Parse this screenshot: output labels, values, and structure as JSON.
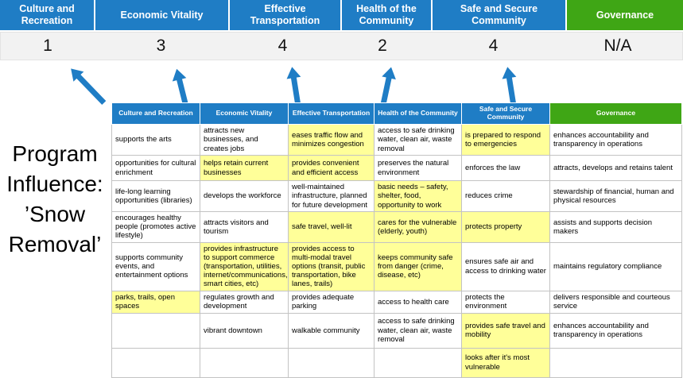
{
  "colors": {
    "header_blue": "#1f7dc5",
    "header_green": "#3fa615",
    "highlight_yellow": "#ffff99",
    "score_bar_bg": "#f2f2f2",
    "arrow_blue": "#1f7dc5"
  },
  "program_label": {
    "lines": [
      "Program",
      "Influence:",
      "’Snow",
      "Removal’"
    ]
  },
  "columns": [
    {
      "label": "Culture and Recreation",
      "score": "1",
      "color_key": "blue"
    },
    {
      "label": "Economic Vitality",
      "score": "3",
      "color_key": "blue"
    },
    {
      "label": "Effective Transportation",
      "score": "4",
      "color_key": "blue"
    },
    {
      "label": "Health of the Community",
      "score": "2",
      "color_key": "blue"
    },
    {
      "label": "Safe and Secure Community",
      "score": "4",
      "color_key": "blue"
    },
    {
      "label": "Governance",
      "score": "N/A",
      "color_key": "green"
    }
  ],
  "table": {
    "rows": [
      [
        {
          "text": "supports the arts",
          "highlight": false
        },
        {
          "text": "attracts new businesses, and creates jobs",
          "highlight": false
        },
        {
          "text": "eases traffic flow and minimizes congestion",
          "highlight": true
        },
        {
          "text": "access to safe drinking water, clean air, waste removal",
          "highlight": false
        },
        {
          "text": "is prepared to respond to emergencies",
          "highlight": true
        },
        {
          "text": "enhances accountability and transparency in operations",
          "highlight": false
        }
      ],
      [
        {
          "text": "opportunities for cultural enrichment",
          "highlight": false
        },
        {
          "text": "helps retain current businesses",
          "highlight": true
        },
        {
          "text": "provides convenient and efficient access",
          "highlight": true
        },
        {
          "text": "preserves the natural environment",
          "highlight": false
        },
        {
          "text": "enforces the law",
          "highlight": false
        },
        {
          "text": "attracts, develops and retains talent",
          "highlight": false
        }
      ],
      [
        {
          "text": "life-long learning opportunities (libraries)",
          "highlight": false
        },
        {
          "text": "develops the workforce",
          "highlight": false
        },
        {
          "text": "well-maintained infrastructure, planned for future development",
          "highlight": false
        },
        {
          "text": "basic needs – safety, shelter, food, opportunity to work",
          "highlight": true
        },
        {
          "text": "reduces crime",
          "highlight": false
        },
        {
          "text": "stewardship of financial, human and physical resources",
          "highlight": false
        }
      ],
      [
        {
          "text": "encourages healthy people (promotes active lifestyle)",
          "highlight": false
        },
        {
          "text": "attracts visitors and tourism",
          "highlight": false
        },
        {
          "text": "safe travel, well-lit",
          "highlight": true
        },
        {
          "text": "cares for the vulnerable (elderly, youth)",
          "highlight": true
        },
        {
          "text": "protects property",
          "highlight": true
        },
        {
          "text": "assists and supports decision makers",
          "highlight": false
        }
      ],
      [
        {
          "text": "supports community events, and entertainment options",
          "highlight": false
        },
        {
          "text": "provides infrastructure to support commerce (transportation, utilities, internet/communications, smart cities, etc)",
          "highlight": true
        },
        {
          "text": "provides access to multi-modal travel options (transit, public transportation, bike lanes, trails)",
          "highlight": true
        },
        {
          "text": "keeps community safe from danger (crime, disease, etc)",
          "highlight": true
        },
        {
          "text": "ensures safe air and access to drinking water",
          "highlight": false
        },
        {
          "text": "maintains regulatory compliance",
          "highlight": false
        }
      ],
      [
        {
          "text": "parks, trails, open spaces",
          "highlight": true
        },
        {
          "text": "regulates growth and development",
          "highlight": false
        },
        {
          "text": "provides adequate parking",
          "highlight": false
        },
        {
          "text": "access to health care",
          "highlight": false
        },
        {
          "text": "protects the environment",
          "highlight": false
        },
        {
          "text": "delivers responsible and courteous service",
          "highlight": false
        }
      ],
      [
        {
          "text": "",
          "highlight": false
        },
        {
          "text": "vibrant downtown",
          "highlight": false
        },
        {
          "text": "walkable community",
          "highlight": false
        },
        {
          "text": "access to safe drinking water, clean air, waste removal",
          "highlight": false
        },
        {
          "text": "provides safe travel and mobility",
          "highlight": true
        },
        {
          "text": "enhances accountability and transparency in operations",
          "highlight": false
        }
      ],
      [
        {
          "text": "",
          "highlight": false
        },
        {
          "text": "",
          "highlight": false
        },
        {
          "text": "",
          "highlight": false
        },
        {
          "text": "",
          "highlight": false
        },
        {
          "text": "looks after it's most vulnerable",
          "highlight": true
        },
        {
          "text": "",
          "highlight": false
        }
      ]
    ]
  }
}
